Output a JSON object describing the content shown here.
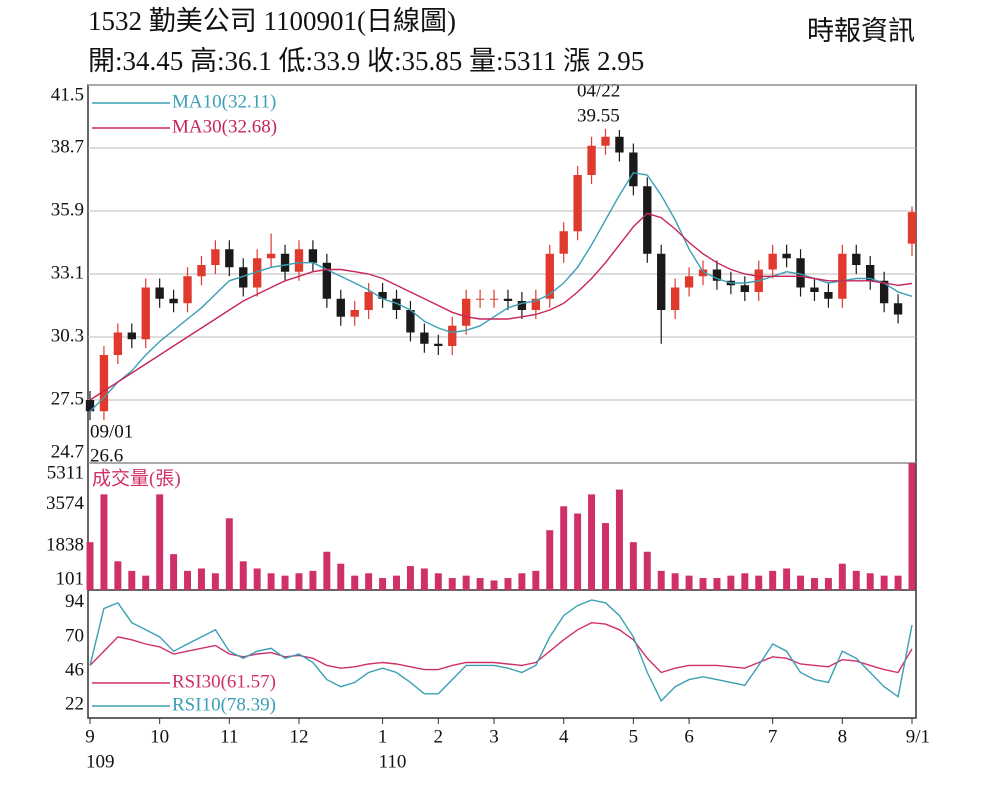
{
  "chart_data": {
    "type": "candlestick",
    "title": "1532  勤美公司 1100901(日線圖)",
    "subtitle": "開:34.45 高:36.1 低:33.9 收:35.85 量:5311 漲 2.95",
    "source": "時報資訊",
    "categories": [
      "9",
      null,
      null,
      null,
      null,
      "10",
      null,
      null,
      null,
      null,
      "11",
      null,
      null,
      null,
      null,
      "12",
      null,
      null,
      null,
      null,
      null,
      "1",
      null,
      null,
      null,
      "2",
      null,
      null,
      null,
      "3",
      null,
      null,
      null,
      null,
      "4",
      null,
      null,
      null,
      null,
      "5",
      null,
      null,
      null,
      "6",
      null,
      null,
      null,
      null,
      null,
      "7",
      null,
      null,
      null,
      null,
      "8",
      null,
      null,
      null,
      null,
      "9/1"
    ],
    "year_categories": [
      "109",
      null,
      null,
      null,
      null,
      null,
      null,
      null,
      null,
      null,
      null,
      null,
      null,
      null,
      null,
      null,
      null,
      null,
      null,
      null,
      null,
      "110",
      null,
      null,
      null,
      null,
      null,
      null,
      null,
      null,
      null,
      null,
      null,
      null,
      null,
      null,
      null,
      null,
      null,
      null,
      null,
      null,
      null,
      null,
      null,
      null,
      null,
      null,
      null,
      null,
      null,
      null,
      null,
      null,
      null,
      null,
      null,
      null,
      null,
      null
    ],
    "open": [
      27.5,
      27.0,
      29.5,
      30.5,
      30.2,
      32.5,
      32.0,
      31.8,
      33.0,
      33.5,
      34.2,
      33.4,
      32.5,
      33.8,
      34.0,
      33.2,
      34.2,
      33.6,
      32.0,
      31.2,
      31.5,
      32.3,
      32.0,
      31.5,
      30.5,
      30.0,
      29.9,
      30.8,
      32.0,
      32.0,
      32.0,
      31.9,
      31.5,
      32.0,
      34.0,
      35.0,
      37.5,
      38.8,
      39.2,
      38.5,
      37.0,
      34.0,
      31.5,
      32.5,
      33.0,
      33.3,
      32.8,
      32.6,
      32.3,
      33.3,
      34.0,
      33.8,
      32.5,
      32.3,
      32.0,
      34.0,
      33.5,
      32.8,
      31.8,
      34.45
    ],
    "high": [
      27.9,
      29.9,
      30.9,
      30.9,
      32.9,
      32.9,
      32.4,
      33.4,
      33.9,
      34.6,
      34.6,
      33.8,
      34.2,
      34.9,
      34.4,
      34.6,
      34.6,
      34.0,
      32.4,
      31.9,
      32.7,
      32.7,
      32.4,
      31.9,
      30.9,
      30.4,
      31.2,
      32.4,
      32.4,
      32.4,
      32.4,
      32.3,
      32.4,
      34.4,
      35.4,
      37.9,
      39.2,
      39.55,
      39.5,
      38.9,
      37.4,
      34.4,
      32.9,
      33.4,
      33.7,
      33.7,
      33.2,
      33.0,
      33.7,
      34.4,
      34.4,
      34.2,
      32.9,
      32.7,
      34.4,
      34.4,
      33.9,
      33.2,
      32.2,
      36.1
    ],
    "low": [
      26.6,
      26.6,
      29.1,
      29.8,
      29.8,
      31.6,
      31.4,
      31.4,
      32.6,
      33.1,
      33.0,
      32.1,
      32.1,
      33.4,
      32.8,
      32.8,
      33.2,
      31.6,
      30.8,
      30.8,
      31.1,
      31.6,
      31.1,
      30.1,
      29.6,
      29.5,
      29.5,
      30.4,
      31.6,
      31.6,
      31.5,
      31.1,
      31.1,
      31.6,
      33.6,
      34.6,
      37.1,
      38.4,
      38.1,
      36.6,
      33.6,
      30.0,
      31.1,
      32.1,
      32.6,
      32.4,
      32.2,
      31.9,
      31.9,
      32.9,
      33.4,
      32.1,
      31.9,
      31.6,
      31.6,
      33.1,
      32.4,
      31.4,
      30.9,
      33.9
    ],
    "close": [
      27.0,
      29.5,
      30.5,
      30.2,
      32.5,
      32.0,
      31.8,
      33.0,
      33.5,
      34.2,
      33.4,
      32.5,
      33.8,
      34.0,
      33.2,
      34.2,
      33.6,
      32.0,
      31.2,
      31.5,
      32.3,
      32.0,
      31.5,
      30.5,
      30.0,
      29.9,
      30.8,
      32.0,
      32.0,
      32.0,
      31.9,
      31.5,
      32.0,
      34.0,
      35.0,
      37.5,
      38.8,
      39.2,
      38.5,
      37.0,
      34.0,
      31.5,
      32.5,
      33.0,
      33.3,
      32.8,
      32.6,
      32.3,
      33.3,
      34.0,
      33.8,
      32.5,
      32.3,
      32.0,
      34.0,
      33.5,
      32.8,
      31.8,
      31.3,
      35.85
    ],
    "up_color": "#e03a2e",
    "down_color": "#1a1a1a",
    "ylim": [
      24.7,
      41.5
    ],
    "yticks": [
      41.5,
      38.7,
      35.9,
      33.1,
      30.3,
      27.5,
      24.7
    ],
    "grid": true,
    "series": [
      {
        "name": "MA10(32.11)",
        "color": "#3a9fb6",
        "values": [
          27.0,
          27.6,
          28.3,
          28.8,
          29.5,
          30.1,
          30.6,
          31.1,
          31.6,
          32.2,
          32.8,
          33.0,
          33.2,
          33.4,
          33.5,
          33.6,
          33.6,
          33.3,
          33.0,
          32.7,
          32.4,
          32.0,
          31.8,
          31.5,
          31.0,
          30.7,
          30.5,
          30.6,
          30.8,
          31.2,
          31.6,
          31.8,
          31.9,
          32.2,
          32.7,
          33.4,
          34.4,
          35.5,
          36.6,
          37.6,
          37.5,
          36.6,
          35.5,
          34.2,
          33.2,
          32.9,
          32.7,
          32.7,
          32.8,
          33.0,
          33.2,
          33.1,
          32.9,
          32.7,
          32.8,
          32.9,
          32.9,
          32.7,
          32.3,
          32.11
        ]
      },
      {
        "name": "MA30(32.68)",
        "color": "#c8245a",
        "values": [
          27.5,
          27.9,
          28.3,
          28.7,
          29.1,
          29.5,
          29.9,
          30.3,
          30.7,
          31.1,
          31.5,
          31.9,
          32.2,
          32.5,
          32.8,
          33.0,
          33.2,
          33.3,
          33.3,
          33.2,
          33.1,
          32.9,
          32.6,
          32.3,
          32.0,
          31.7,
          31.4,
          31.2,
          31.1,
          31.1,
          31.1,
          31.2,
          31.3,
          31.5,
          31.8,
          32.3,
          32.9,
          33.6,
          34.4,
          35.2,
          35.8,
          35.6,
          35.1,
          34.5,
          34.0,
          33.6,
          33.3,
          33.1,
          33.0,
          33.0,
          33.0,
          33.0,
          32.9,
          32.8,
          32.8,
          32.8,
          32.8,
          32.7,
          32.6,
          32.68
        ]
      }
    ],
    "annotations": [
      "04/22",
      "39.55",
      "09/01",
      "26.6"
    ],
    "volume": {
      "title": "成交量(張)",
      "color": "#d0306a",
      "ylim": [
        0,
        5311
      ],
      "yticks": [
        5311,
        3574,
        1838,
        101
      ],
      "values": [
        2000,
        4000,
        1200,
        800,
        600,
        4000,
        1500,
        800,
        900,
        700,
        3000,
        1200,
        900,
        700,
        600,
        700,
        800,
        1600,
        1100,
        600,
        700,
        500,
        600,
        1000,
        900,
        700,
        500,
        600,
        500,
        400,
        500,
        700,
        800,
        2500,
        3500,
        3200,
        4000,
        2800,
        4200,
        2000,
        1600,
        800,
        700,
        600,
        500,
        500,
        600,
        700,
        600,
        800,
        900,
        600,
        500,
        500,
        1100,
        800,
        700,
        600,
        600,
        5311
      ]
    },
    "rsi": {
      "ylim": [
        13,
        103
      ],
      "yticks": [
        94,
        70,
        46,
        22
      ],
      "series": [
        {
          "name": "RSI30(61.57)",
          "color": "#d0306a",
          "values": [
            50,
            60,
            70,
            68,
            65,
            63,
            58,
            60,
            62,
            64,
            58,
            56,
            58,
            59,
            56,
            57,
            55,
            50,
            48,
            49,
            51,
            52,
            51,
            49,
            47,
            47,
            50,
            52,
            52,
            52,
            51,
            50,
            52,
            60,
            68,
            75,
            80,
            79,
            75,
            68,
            55,
            45,
            48,
            50,
            50,
            50,
            49,
            48,
            52,
            56,
            55,
            51,
            50,
            49,
            54,
            53,
            50,
            47,
            45,
            61.57
          ]
        },
        {
          "name": "RSI10(78.39)",
          "color": "#3a9fb6",
          "values": [
            50,
            90,
            94,
            80,
            75,
            70,
            60,
            65,
            70,
            75,
            60,
            55,
            60,
            62,
            55,
            58,
            52,
            40,
            35,
            38,
            45,
            48,
            45,
            38,
            30,
            30,
            40,
            50,
            50,
            50,
            48,
            45,
            50,
            70,
            85,
            92,
            96,
            94,
            85,
            70,
            45,
            25,
            35,
            40,
            42,
            40,
            38,
            36,
            50,
            65,
            60,
            45,
            40,
            38,
            60,
            55,
            45,
            35,
            28,
            78.39
          ]
        }
      ]
    }
  }
}
